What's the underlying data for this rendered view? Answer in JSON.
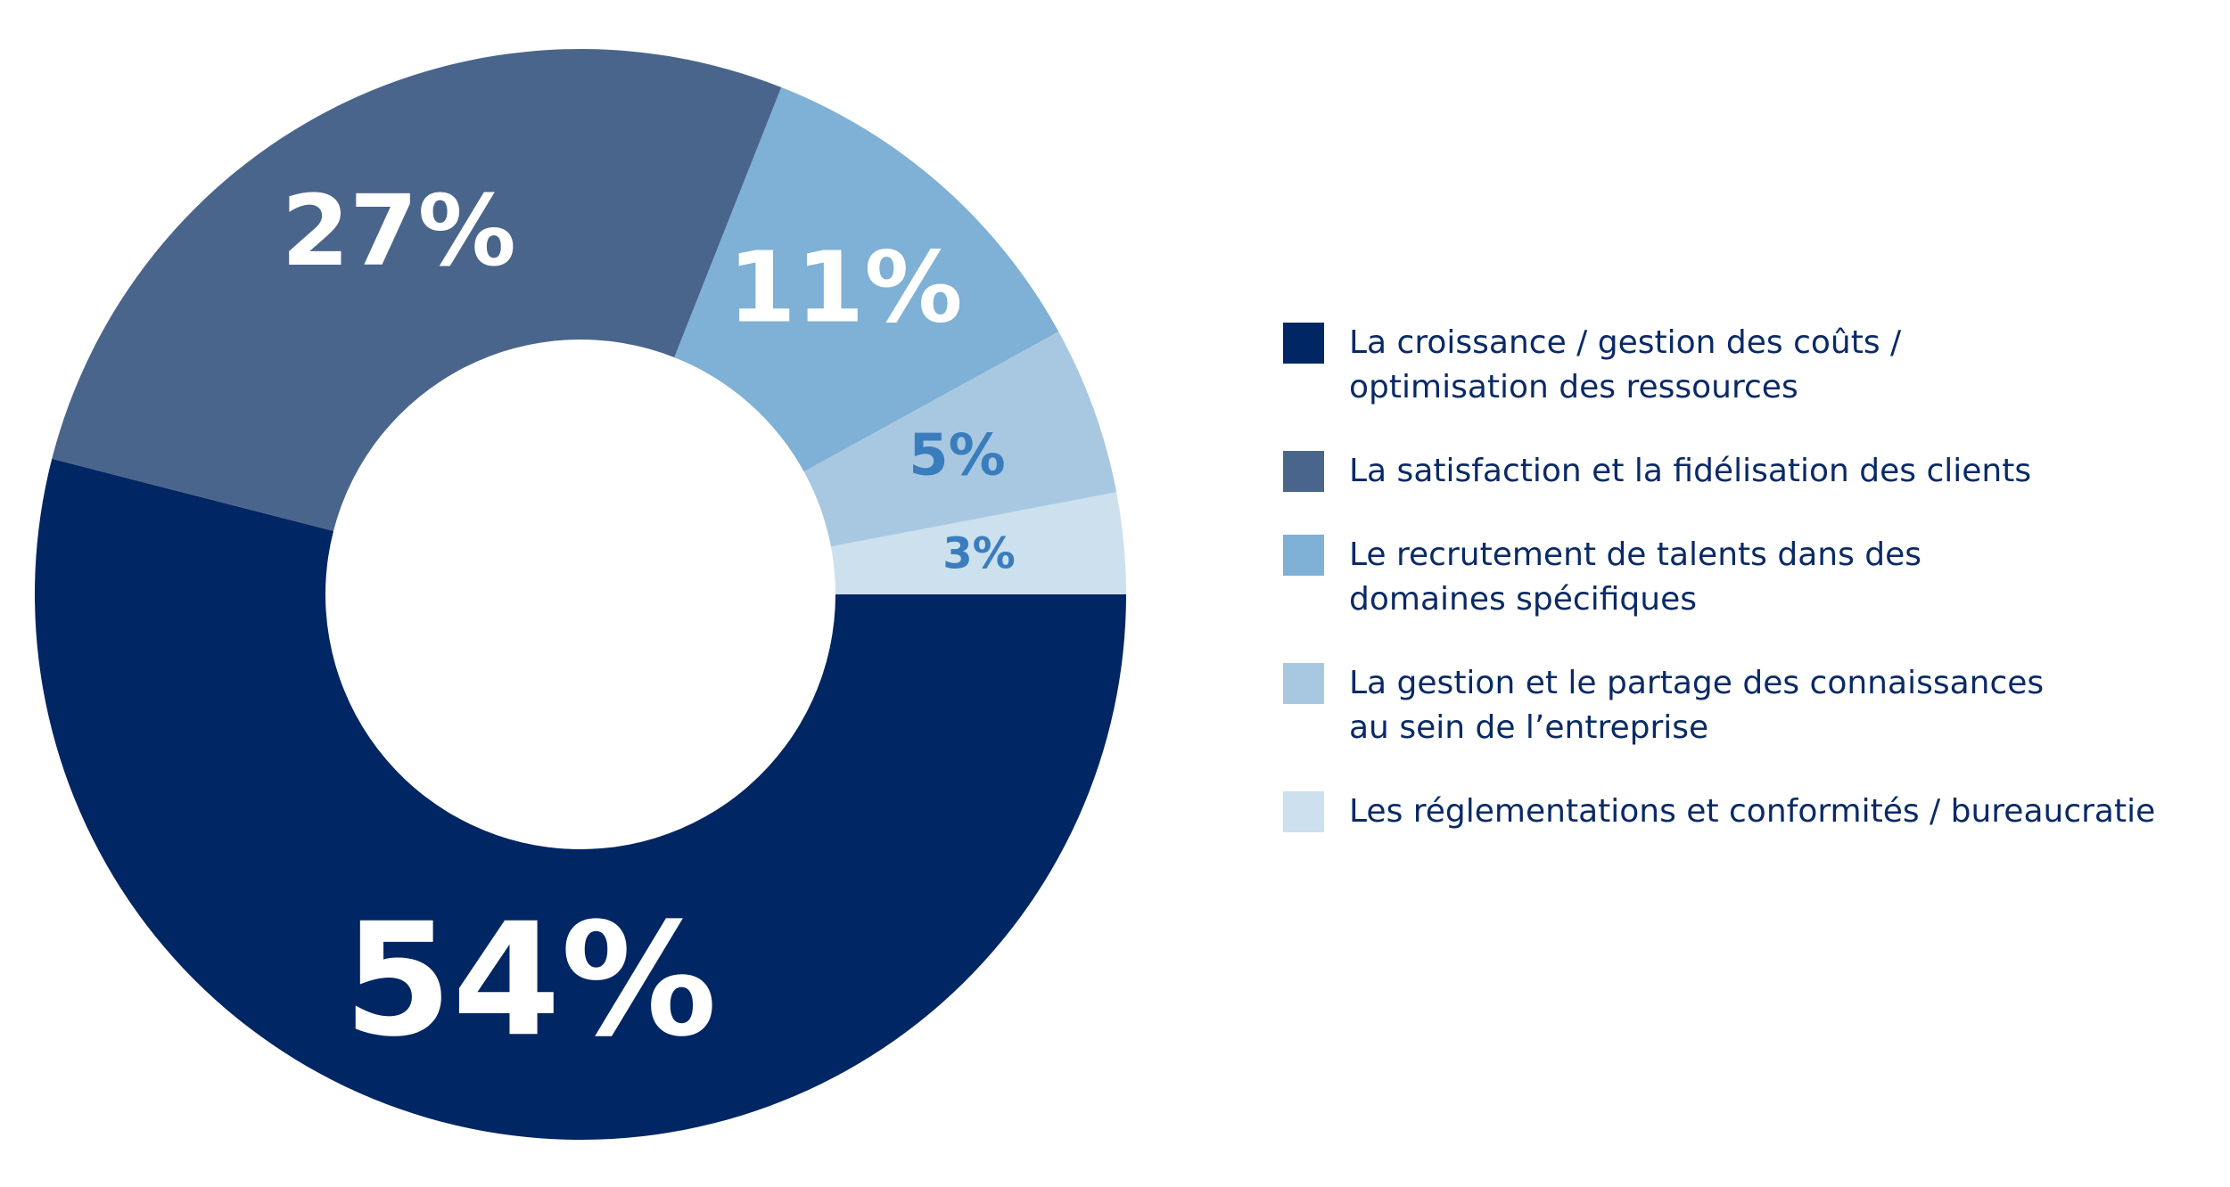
{
  "chart_data": {
    "type": "donut",
    "categories": [
      "La croissance / gestion des coûts / optimisation des ressources",
      "La satisfaction et la fidélisation des clients",
      "Le recrutement de talents dans des domaines spécifiques",
      "La gestion et le partage des connaissances au sein de l’entreprise",
      "Les réglementations et conformités / bureaucratie"
    ],
    "values": [
      54,
      27,
      11,
      5,
      3
    ],
    "value_labels": [
      "54%",
      "27%",
      "11%",
      "5%",
      "3%"
    ],
    "colors": [
      "#002663",
      "#4a658c",
      "#7fb0d5",
      "#a8c8e1",
      "#cde0ee"
    ],
    "value_label_colors": [
      "#ffffff",
      "#ffffff",
      "#ffffff",
      "#3a7dbd",
      "#3a7dbd"
    ],
    "legend": "right"
  }
}
